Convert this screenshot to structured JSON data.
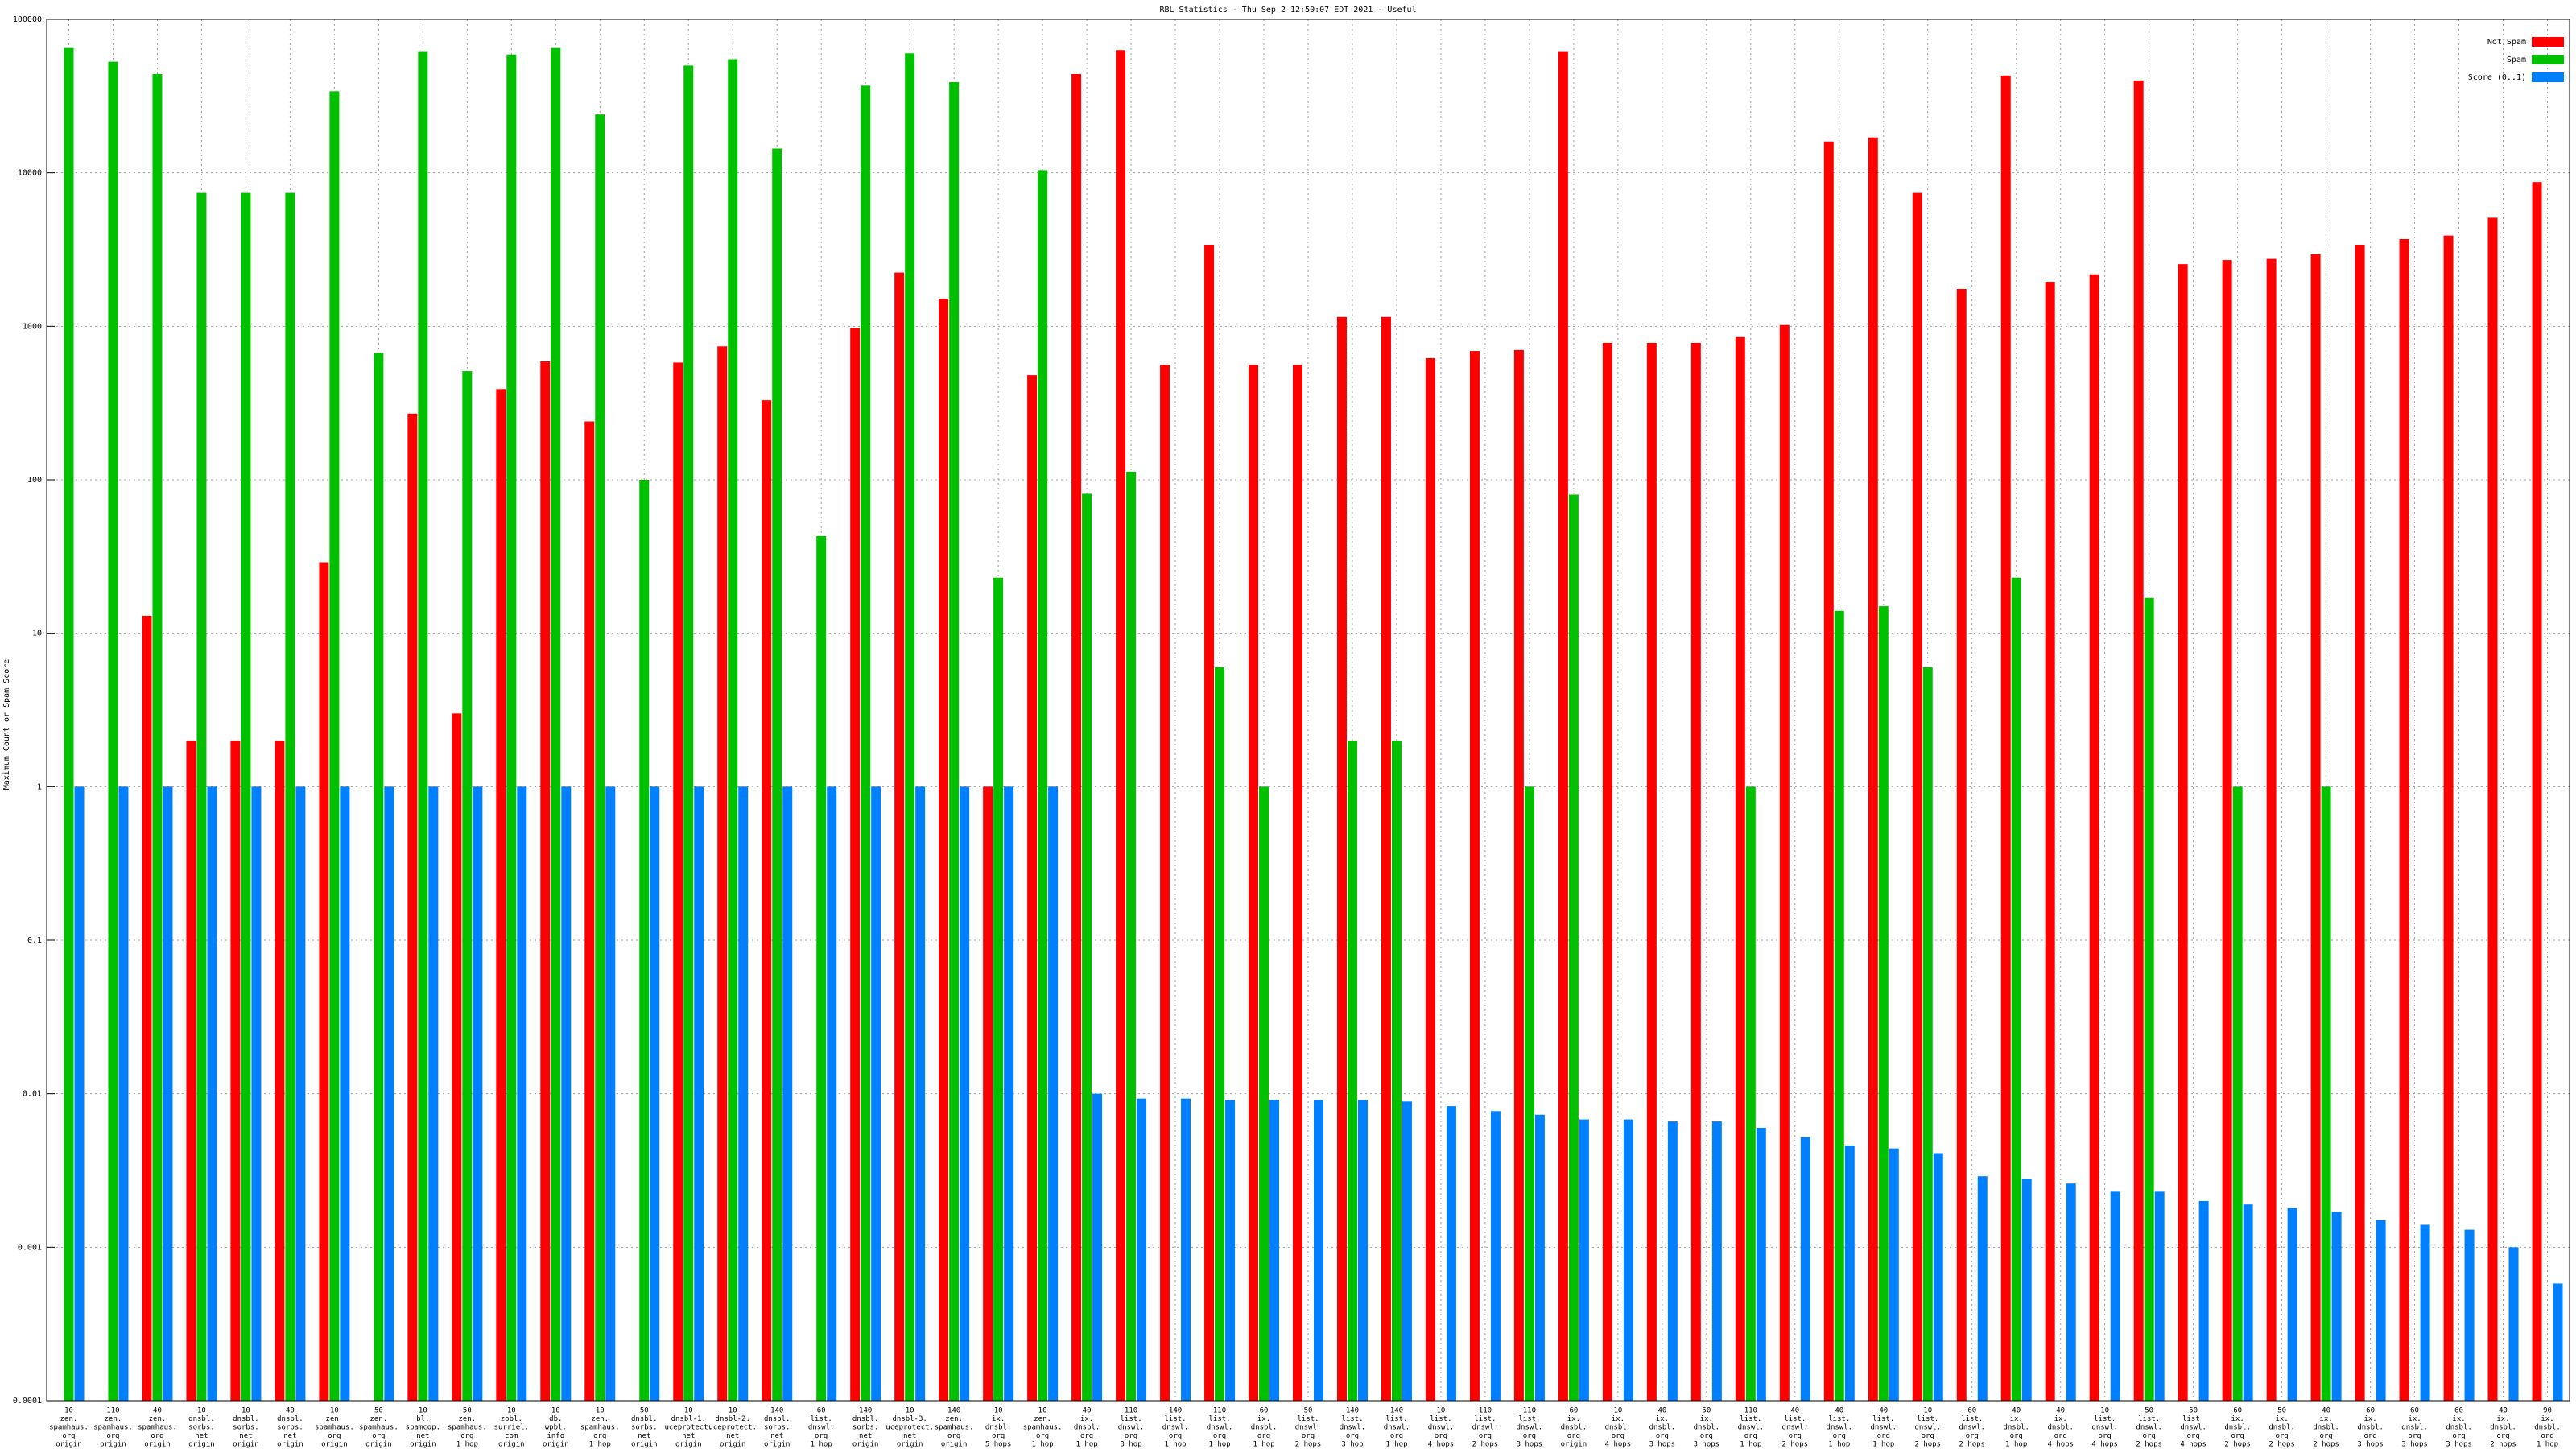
{
  "chart_data": {
    "type": "bar",
    "log": true,
    "grid": true,
    "legend": "top-right",
    "title": "RBL Statistics - Thu Sep  2 12:50:07 EDT 2021 - Useful",
    "ylabel": "Maximum Count or Spam Score",
    "ylim": [
      0.0001,
      100000
    ],
    "yticks": [
      0.0001,
      0.001,
      0.01,
      0.1,
      1,
      10,
      100,
      1000,
      10000,
      100000
    ],
    "categories": [
      [
        "10",
        "zen.",
        "spamhaus.",
        "org",
        "origin"
      ],
      [
        "110",
        "zen.",
        "spamhaus.",
        "org",
        "origin"
      ],
      [
        "40",
        "zen.",
        "spamhaus.",
        "org",
        "origin"
      ],
      [
        "10",
        "dnsbl.",
        "sorbs.",
        "net",
        "origin"
      ],
      [
        "10",
        "dnsbl.",
        "sorbs.",
        "net",
        "origin"
      ],
      [
        "40",
        "dnsbl.",
        "sorbs.",
        "net",
        "origin"
      ],
      [
        "10",
        "zen.",
        "spamhaus.",
        "org",
        "origin"
      ],
      [
        "50",
        "zen.",
        "spamhaus.",
        "org",
        "origin"
      ],
      [
        "10",
        "bl.",
        "spamcop.",
        "net",
        "origin"
      ],
      [
        "50",
        "zen.",
        "spamhaus.",
        "org",
        "1 hop"
      ],
      [
        "10",
        "zobl.",
        "surriel.",
        "com",
        "origin"
      ],
      [
        "10",
        "db.",
        "wpbl.",
        "info",
        "origin"
      ],
      [
        "10",
        "zen.",
        "spamhaus.",
        "org",
        "1 hop"
      ],
      [
        "50",
        "dnsbl.",
        "sorbs.",
        "net",
        "origin"
      ],
      [
        "10",
        "dnsbl-1.",
        "uceprotect.",
        "net",
        "origin"
      ],
      [
        "10",
        "dnsbl-2.",
        "uceprotect.",
        "net",
        "origin"
      ],
      [
        "140",
        "dnsbl.",
        "sorbs.",
        "net",
        "origin"
      ],
      [
        "60",
        "list.",
        "dnswl.",
        "org",
        "1 hop"
      ],
      [
        "140",
        "dnsbl.",
        "sorbs.",
        "net",
        "origin"
      ],
      [
        "10",
        "dnsbl-3.",
        "uceprotect.",
        "net",
        "origin"
      ],
      [
        "140",
        "zen.",
        "spamhaus.",
        "org",
        "origin"
      ],
      [
        "10",
        "ix.",
        "dnsbl.",
        "org",
        "5 hops"
      ],
      [
        "10",
        "zen.",
        "spamhaus.",
        "org",
        "1 hop"
      ],
      [
        "40",
        "ix.",
        "dnsbl.",
        "org",
        "1 hop"
      ],
      [
        "110",
        "list.",
        "dnswl.",
        "org",
        "3 hop"
      ],
      [
        "140",
        "list.",
        "dnswl.",
        "org",
        "1 hop"
      ],
      [
        "110",
        "list.",
        "dnswl.",
        "org",
        "1 hop"
      ],
      [
        "60",
        "ix.",
        "dnsbl.",
        "org",
        "1 hop"
      ],
      [
        "50",
        "list.",
        "dnswl.",
        "org",
        "2 hops"
      ],
      [
        "140",
        "list.",
        "dnswl.",
        "org",
        "3 hop"
      ],
      [
        "140",
        "list.",
        "dnswl.",
        "org",
        "1 hop"
      ],
      [
        "10",
        "list.",
        "dnswl.",
        "org",
        "4 hops"
      ],
      [
        "110",
        "list.",
        "dnswl.",
        "org",
        "2 hops"
      ],
      [
        "110",
        "list.",
        "dnswl.",
        "org",
        "3 hops"
      ],
      [
        "60",
        "ix.",
        "dnsbl.",
        "org",
        "origin"
      ],
      [
        "10",
        "ix.",
        "dnsbl.",
        "org",
        "4 hops"
      ],
      [
        "40",
        "ix.",
        "dnsbl.",
        "org",
        "3 hops"
      ],
      [
        "50",
        "ix.",
        "dnsbl.",
        "org",
        "3 hops"
      ],
      [
        "110",
        "list.",
        "dnswl.",
        "org",
        "1 hop"
      ],
      [
        "40",
        "list.",
        "dnswl.",
        "org",
        "2 hops"
      ],
      [
        "40",
        "list.",
        "dnswl.",
        "org",
        "1 hop"
      ],
      [
        "40",
        "list.",
        "dnswl.",
        "org",
        "1 hop"
      ],
      [
        "10",
        "list.",
        "dnswl.",
        "org",
        "2 hops"
      ],
      [
        "60",
        "list.",
        "dnswl.",
        "org",
        "2 hops"
      ],
      [
        "40",
        "ix.",
        "dnsbl.",
        "org",
        "1 hop"
      ],
      [
        "40",
        "ix.",
        "dnsbl.",
        "org",
        "4 hops"
      ],
      [
        "10",
        "list.",
        "dnswl.",
        "org",
        "4 hops"
      ],
      [
        "50",
        "list.",
        "dnswl.",
        "org",
        "2 hops"
      ],
      [
        "50",
        "list.",
        "dnswl.",
        "org",
        "4 hops"
      ],
      [
        "60",
        "ix.",
        "dnsbl.",
        "org",
        "2 hops"
      ],
      [
        "50",
        "ix.",
        "dnsbl.",
        "org",
        "2 hops"
      ],
      [
        "40",
        "ix.",
        "dnsbl.",
        "org",
        "2 hops"
      ],
      [
        "60",
        "ix.",
        "dnsbl.",
        "org",
        "3 hops"
      ],
      [
        "60",
        "ix.",
        "dnsbl.",
        "org",
        "3 hops"
      ],
      [
        "60",
        "ix.",
        "dnsbl.",
        "org",
        "3 hops"
      ],
      [
        "40",
        "ix.",
        "dnsbl.",
        "org",
        "2 hops"
      ],
      [
        "90",
        "ix.",
        "dnsbl.",
        "org",
        "1 hop"
      ]
    ],
    "series": [
      {
        "name": "Not Spam",
        "color": "#ff0000",
        "values": [
          null,
          null,
          13,
          2,
          2,
          2,
          29,
          null,
          270,
          3,
          390,
          590,
          240,
          null,
          580,
          740,
          330,
          null,
          970,
          2240,
          1510,
          1,
          480,
          44000,
          63000,
          560,
          3400,
          560,
          560,
          1150,
          1150,
          620,
          690,
          700,
          62000,
          780,
          780,
          780,
          850,
          1020,
          16000,
          17000,
          7400,
          1750,
          43000,
          1950,
          2180,
          40000,
          2540,
          2700,
          2750,
          2950,
          3400,
          3700,
          3900,
          5100,
          8700
        ]
      },
      {
        "name": "Spam",
        "color": "#00c000",
        "values": [
          65000,
          53000,
          44000,
          7400,
          7400,
          7400,
          34000,
          670,
          62000,
          510,
          59000,
          65000,
          24000,
          100,
          50000,
          55000,
          14400,
          43,
          37000,
          60000,
          39000,
          23,
          10400,
          81,
          113,
          null,
          6,
          1,
          null,
          2,
          2,
          null,
          null,
          1,
          80,
          null,
          null,
          null,
          1,
          null,
          14,
          15,
          6,
          null,
          23,
          null,
          null,
          17,
          null,
          1,
          null,
          1,
          null,
          null,
          null,
          null,
          null
        ]
      },
      {
        "name": "Score (0..1)",
        "color": "#0080ff",
        "values": [
          1,
          1,
          1,
          1,
          1,
          1,
          1,
          1,
          1,
          1,
          1,
          1,
          1,
          1,
          1,
          1,
          1,
          1,
          1,
          1,
          1,
          1,
          1,
          0.01,
          0.0093,
          0.0093,
          0.0091,
          0.0091,
          0.0091,
          0.0091,
          0.0089,
          0.0083,
          0.0077,
          0.0073,
          0.0068,
          0.0068,
          0.0066,
          0.0066,
          0.006,
          0.0052,
          0.0046,
          0.0044,
          0.0041,
          0.0029,
          0.0028,
          0.0026,
          0.0023,
          0.0023,
          0.002,
          0.0019,
          0.0018,
          0.0017,
          0.0015,
          0.0014,
          0.0013,
          0.001,
          0.00058
        ]
      }
    ]
  }
}
